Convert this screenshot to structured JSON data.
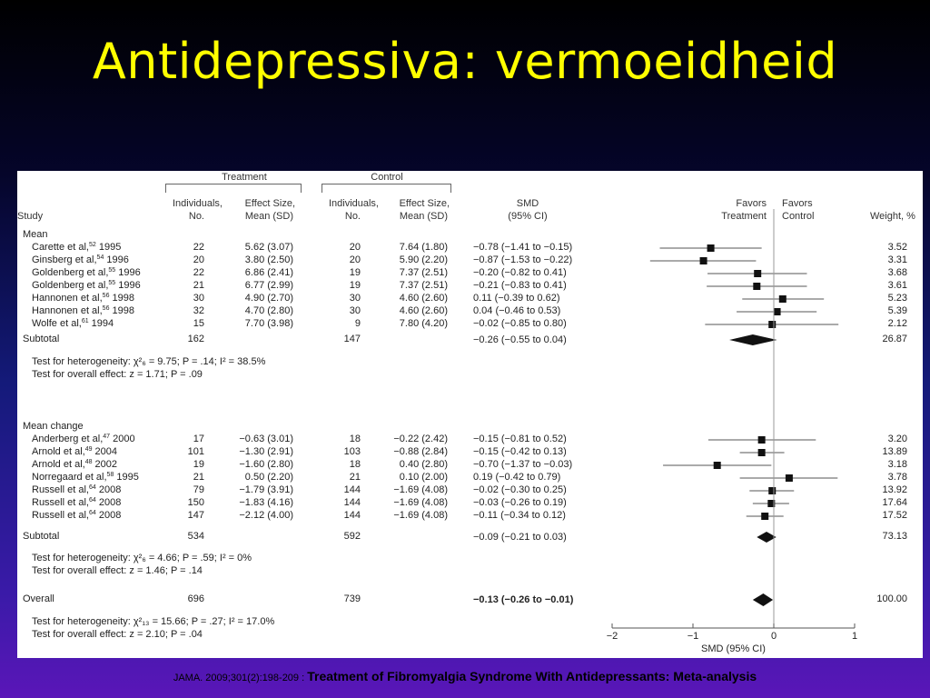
{
  "slide": {
    "title": "Antidepressiva: vermoeidheid",
    "footer_citation": "JAMA. 2009;301(2):198-209",
    "footer_sep": " : ",
    "footer_title": "Treatment of Fibromyalgia Syndrome With Antidepressants: Meta-analysis"
  },
  "table": {
    "group_treatment": "Treatment",
    "group_control": "Control",
    "col_study": "Study",
    "col_ind_line1": "Individuals,",
    "col_ind_line2": "No.",
    "col_es_line1": "Effect Size,",
    "col_es_line2": "Mean (SD)",
    "col_smd_line1": "SMD",
    "col_smd_line2": "(95% CI)",
    "favors_treatment_1": "Favors",
    "favors_treatment_2": "Treatment",
    "favors_control_1": "Favors",
    "favors_control_2": "Control",
    "col_weight": "Weight, %",
    "overall_label": "Overall",
    "overall_tn": "696",
    "overall_cn": "739",
    "overall_smd": "−0.13 (−0.26 to −0.01)",
    "overall_weight": "100.00",
    "overall_het": "Test for heterogeneity: χ²₁₃ = 15.66; P = .27; I² = 17.0%",
    "overall_eff": "Test for overall effect: z = 2.10; P = .04"
  },
  "chart_data": {
    "type": "forest",
    "xlabel": "SMD (95% CI)",
    "xlim": [
      -2,
      1
    ],
    "xticks": [
      "−2",
      "−1",
      "0",
      "1"
    ],
    "groups": [
      {
        "name": "Mean",
        "studies": [
          {
            "label": "Carette et al,",
            "ref": "52",
            "year": "1995",
            "tn": "22",
            "tes": "5.62 (3.07)",
            "cn": "20",
            "ces": "7.64 (1.80)",
            "smd_text": "−0.78 (−1.41 to −0.15)",
            "smd": -0.78,
            "lo": -1.41,
            "hi": -0.15,
            "weight": "3.52"
          },
          {
            "label": "Ginsberg et al,",
            "ref": "54",
            "year": "1996",
            "tn": "20",
            "tes": "3.80 (2.50)",
            "cn": "20",
            "ces": "5.90 (2.20)",
            "smd_text": "−0.87 (−1.53 to −0.22)",
            "smd": -0.87,
            "lo": -1.53,
            "hi": -0.22,
            "weight": "3.31"
          },
          {
            "label": "Goldenberg et al,",
            "ref": "55",
            "year": "1996",
            "tn": "22",
            "tes": "6.86 (2.41)",
            "cn": "19",
            "ces": "7.37 (2.51)",
            "smd_text": "−0.20 (−0.82 to 0.41)",
            "smd": -0.2,
            "lo": -0.82,
            "hi": 0.41,
            "weight": "3.68"
          },
          {
            "label": "Goldenberg et al,",
            "ref": "55",
            "year": "1996",
            "tn": "21",
            "tes": "6.77 (2.99)",
            "cn": "19",
            "ces": "7.37 (2.51)",
            "smd_text": "−0.21 (−0.83 to 0.41)",
            "smd": -0.21,
            "lo": -0.83,
            "hi": 0.41,
            "weight": "3.61"
          },
          {
            "label": "Hannonen et al,",
            "ref": "56",
            "year": "1998",
            "tn": "30",
            "tes": "4.90 (2.70)",
            "cn": "30",
            "ces": "4.60 (2.60)",
            "smd_text": "0.11 (−0.39 to 0.62)",
            "smd": 0.11,
            "lo": -0.39,
            "hi": 0.62,
            "weight": "5.23"
          },
          {
            "label": "Hannonen et al,",
            "ref": "56",
            "year": "1998",
            "tn": "32",
            "tes": "4.70 (2.80)",
            "cn": "30",
            "ces": "4.60 (2.60)",
            "smd_text": "0.04 (−0.46 to 0.53)",
            "smd": 0.04,
            "lo": -0.46,
            "hi": 0.53,
            "weight": "5.39"
          },
          {
            "label": "Wolfe et al,",
            "ref": "61",
            "year": "1994",
            "tn": "15",
            "tes": "7.70 (3.98)",
            "cn": "9",
            "ces": "7.80 (4.20)",
            "smd_text": "−0.02 (−0.85 to 0.80)",
            "smd": -0.02,
            "lo": -0.85,
            "hi": 0.8,
            "weight": "2.12"
          }
        ],
        "subtotal": {
          "label": "Subtotal",
          "tn": "162",
          "cn": "147",
          "smd_text": "−0.26 (−0.55 to 0.04)",
          "smd": -0.26,
          "lo": -0.55,
          "hi": 0.04,
          "weight": "26.87"
        },
        "het": "Test for heterogeneity: χ²₆ = 9.75; P = .14; I² = 38.5%",
        "eff": "Test for overall effect: z = 1.71; P = .09"
      },
      {
        "name": "Mean change",
        "studies": [
          {
            "label": "Anderberg et al,",
            "ref": "47",
            "year": "2000",
            "tn": "17",
            "tes": "−0.63 (3.01)",
            "cn": "18",
            "ces": "−0.22 (2.42)",
            "smd_text": "−0.15 (−0.81 to 0.52)",
            "smd": -0.15,
            "lo": -0.81,
            "hi": 0.52,
            "weight": "3.20"
          },
          {
            "label": "Arnold et al,",
            "ref": "49",
            "year": "2004",
            "tn": "101",
            "tes": "−1.30 (2.91)",
            "cn": "103",
            "ces": "−0.88 (2.84)",
            "smd_text": "−0.15 (−0.42 to 0.13)",
            "smd": -0.15,
            "lo": -0.42,
            "hi": 0.13,
            "weight": "13.89"
          },
          {
            "label": "Arnold et al,",
            "ref": "48",
            "year": "2002",
            "tn": "19",
            "tes": "−1.60 (2.80)",
            "cn": "18",
            "ces": "0.40 (2.80)",
            "smd_text": "−0.70 (−1.37 to −0.03)",
            "smd": -0.7,
            "lo": -1.37,
            "hi": -0.03,
            "weight": "3.18"
          },
          {
            "label": "Norregaard et al,",
            "ref": "58",
            "year": "1995",
            "tn": "21",
            "tes": "0.50 (2.20)",
            "cn": "21",
            "ces": "0.10 (2.00)",
            "smd_text": "0.19 (−0.42 to 0.79)",
            "smd": 0.19,
            "lo": -0.42,
            "hi": 0.79,
            "weight": "3.78"
          },
          {
            "label": "Russell et al,",
            "ref": "64",
            "year": "2008",
            "tn": "79",
            "tes": "−1.79 (3.91)",
            "cn": "144",
            "ces": "−1.69 (4.08)",
            "smd_text": "−0.02 (−0.30 to 0.25)",
            "smd": -0.02,
            "lo": -0.3,
            "hi": 0.25,
            "weight": "13.92"
          },
          {
            "label": "Russell et al,",
            "ref": "64",
            "year": "2008",
            "tn": "150",
            "tes": "−1.83 (4.16)",
            "cn": "144",
            "ces": "−1.69 (4.08)",
            "smd_text": "−0.03 (−0.26 to 0.19)",
            "smd": -0.03,
            "lo": -0.26,
            "hi": 0.19,
            "weight": "17.64"
          },
          {
            "label": "Russell et al,",
            "ref": "64",
            "year": "2008",
            "tn": "147",
            "tes": "−2.12 (4.00)",
            "cn": "144",
            "ces": "−1.69 (4.08)",
            "smd_text": "−0.11 (−0.34 to 0.12)",
            "smd": -0.11,
            "lo": -0.34,
            "hi": 0.12,
            "weight": "17.52"
          }
        ],
        "subtotal": {
          "label": "Subtotal",
          "tn": "534",
          "cn": "592",
          "smd_text": "−0.09 (−0.21 to 0.03)",
          "smd": -0.09,
          "lo": -0.21,
          "hi": 0.03,
          "weight": "73.13"
        },
        "het": "Test for heterogeneity: χ²₆ = 4.66; P = .59; I² = 0%",
        "eff": "Test for overall effect: z = 1.46; P = .14"
      }
    ],
    "overall": {
      "smd": -0.13,
      "lo": -0.26,
      "hi": -0.01
    }
  }
}
